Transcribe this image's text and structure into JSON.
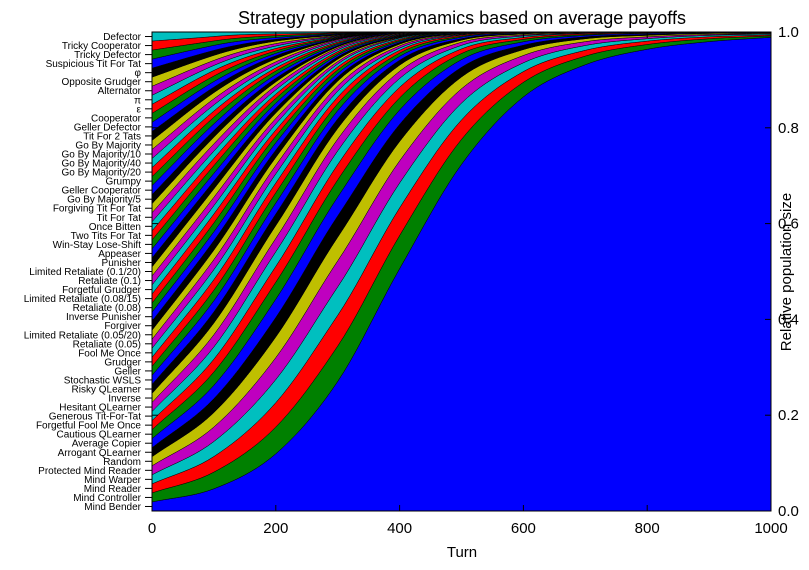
{
  "chart_data": {
    "type": "area",
    "title": "Strategy population dynamics based on average payoffs",
    "xlabel": "Turn",
    "ylabel": "Relative population size",
    "xlim": [
      0,
      1000
    ],
    "ylim": [
      0.0,
      1.0
    ],
    "x_ticks": [
      "0",
      "200",
      "400",
      "600",
      "800",
      "1000"
    ],
    "y_ticks": [
      "0.0",
      "0.2",
      "0.4",
      "0.6",
      "0.8",
      "1.0"
    ],
    "stack_order": "bottom-to-top",
    "colors": [
      "#0000ff",
      "#008000",
      "#ff0000",
      "#00bfbf",
      "#bf00bf",
      "#bfbf00",
      "#000000"
    ],
    "strategies": [
      "Mind Bender",
      "Mind Controller",
      "Mind Reader",
      "Mind Warper",
      "Protected Mind Reader",
      "Random",
      "Arrogant QLearner",
      "Average Copier",
      "Cautious QLearner",
      "Forgetful Fool Me Once",
      "Generous Tit-For-Tat",
      "Hesitant QLearner",
      "Inverse",
      "Risky QLearner",
      "Stochastic WSLS",
      "Geller",
      "Grudger",
      "Fool Me Once",
      "Retaliate (0.05)",
      "Limited Retaliate (0.05/20)",
      "Forgiver",
      "Inverse Punisher",
      "Retaliate (0.08)",
      "Limited Retaliate (0.08/15)",
      "Forgetful Grudger",
      "Retaliate (0.1)",
      "Limited Retaliate (0.1/20)",
      "Punisher",
      "Appeaser",
      "Win-Stay Lose-Shift",
      "Two Tits For Tat",
      "Once Bitten",
      "Tit For Tat",
      "Forgiving Tit For Tat",
      "Go By Majority/5",
      "Geller Cooperator",
      "Grumpy",
      "Go By Majority/20",
      "Go By Majority/40",
      "Go By Majority/10",
      "Go By Majority",
      "Tit For 2 Tats",
      "Geller Defector",
      "Cooperator",
      "ε",
      "π",
      "Alternator",
      "Opposite Grudger",
      "φ",
      "Suspicious Tit For Tat",
      "Tricky Defector",
      "Tricky Cooperator",
      "Defector"
    ],
    "x": [
      0,
      100,
      200,
      300,
      400,
      500,
      600,
      700,
      800,
      900,
      1000
    ],
    "series_note_values": "each row gives the relative population of one strategy at the turns in x; rows follow strategies order",
    "values": [
      [
        0.019,
        0.04,
        0.094,
        0.219,
        0.438,
        0.678,
        0.848,
        0.927,
        0.962,
        0.976,
        0.981
      ],
      [
        0.019,
        0.03,
        0.044,
        0.06,
        0.06,
        0.049,
        0.03,
        0.018,
        0.01,
        0.006,
        0.003
      ],
      [
        0.019,
        0.028,
        0.04,
        0.052,
        0.05,
        0.038,
        0.022,
        0.012,
        0.007,
        0.004,
        0.002
      ],
      [
        0.019,
        0.027,
        0.038,
        0.048,
        0.045,
        0.033,
        0.018,
        0.01,
        0.005,
        0.003,
        0.002
      ],
      [
        0.019,
        0.026,
        0.036,
        0.044,
        0.04,
        0.028,
        0.015,
        0.008,
        0.004,
        0.002,
        0.001
      ],
      [
        0.019,
        0.026,
        0.034,
        0.04,
        0.035,
        0.023,
        0.012,
        0.006,
        0.003,
        0.002,
        0.001
      ],
      [
        0.019,
        0.025,
        0.032,
        0.036,
        0.031,
        0.019,
        0.009,
        0.004,
        0.002,
        0.001,
        0.001
      ],
      [
        0.019,
        0.024,
        0.03,
        0.032,
        0.026,
        0.015,
        0.007,
        0.003,
        0.002,
        0.001,
        0.001
      ],
      [
        0.019,
        0.024,
        0.028,
        0.029,
        0.022,
        0.012,
        0.005,
        0.002,
        0.001,
        0.001,
        0.0
      ],
      [
        0.019,
        0.023,
        0.026,
        0.026,
        0.019,
        0.009,
        0.004,
        0.002,
        0.001,
        0.0,
        0.0
      ],
      [
        0.019,
        0.022,
        0.024,
        0.023,
        0.016,
        0.007,
        0.003,
        0.001,
        0.001,
        0.0,
        0.0
      ],
      [
        0.019,
        0.022,
        0.022,
        0.02,
        0.013,
        0.006,
        0.002,
        0.001,
        0.0,
        0.0,
        0.0
      ],
      [
        0.019,
        0.021,
        0.021,
        0.018,
        0.011,
        0.004,
        0.002,
        0.001,
        0.0,
        0.0,
        0.0
      ],
      [
        0.019,
        0.02,
        0.019,
        0.016,
        0.009,
        0.003,
        0.001,
        0.0,
        0.0,
        0.0,
        0.0
      ],
      [
        0.019,
        0.02,
        0.018,
        0.014,
        0.007,
        0.003,
        0.001,
        0.0,
        0.0,
        0.0,
        0.0
      ],
      [
        0.019,
        0.019,
        0.017,
        0.012,
        0.006,
        0.002,
        0.001,
        0.0,
        0.0,
        0.0,
        0.0
      ],
      [
        0.019,
        0.019,
        0.016,
        0.011,
        0.005,
        0.002,
        0.001,
        0.0,
        0.0,
        0.0,
        0.0
      ],
      [
        0.019,
        0.018,
        0.015,
        0.01,
        0.004,
        0.001,
        0.0,
        0.0,
        0.0,
        0.0,
        0.0
      ],
      [
        0.019,
        0.018,
        0.014,
        0.009,
        0.004,
        0.001,
        0.0,
        0.0,
        0.0,
        0.0,
        0.0
      ],
      [
        0.019,
        0.017,
        0.013,
        0.008,
        0.003,
        0.001,
        0.0,
        0.0,
        0.0,
        0.0,
        0.0
      ],
      [
        0.019,
        0.017,
        0.012,
        0.007,
        0.003,
        0.001,
        0.0,
        0.0,
        0.0,
        0.0,
        0.0
      ],
      [
        0.019,
        0.016,
        0.012,
        0.006,
        0.002,
        0.001,
        0.0,
        0.0,
        0.0,
        0.0,
        0.0
      ],
      [
        0.019,
        0.016,
        0.011,
        0.006,
        0.002,
        0.001,
        0.0,
        0.0,
        0.0,
        0.0,
        0.0
      ],
      [
        0.019,
        0.016,
        0.01,
        0.005,
        0.002,
        0.0,
        0.0,
        0.0,
        0.0,
        0.0,
        0.0
      ],
      [
        0.019,
        0.015,
        0.01,
        0.005,
        0.002,
        0.0,
        0.0,
        0.0,
        0.0,
        0.0,
        0.0
      ],
      [
        0.019,
        0.015,
        0.009,
        0.004,
        0.001,
        0.0,
        0.0,
        0.0,
        0.0,
        0.0,
        0.0
      ],
      [
        0.019,
        0.015,
        0.009,
        0.004,
        0.001,
        0.0,
        0.0,
        0.0,
        0.0,
        0.0,
        0.0
      ],
      [
        0.019,
        0.014,
        0.008,
        0.004,
        0.001,
        0.0,
        0.0,
        0.0,
        0.0,
        0.0,
        0.0
      ],
      [
        0.019,
        0.014,
        0.008,
        0.003,
        0.001,
        0.0,
        0.0,
        0.0,
        0.0,
        0.0,
        0.0
      ],
      [
        0.019,
        0.014,
        0.008,
        0.003,
        0.001,
        0.0,
        0.0,
        0.0,
        0.0,
        0.0,
        0.0
      ],
      [
        0.019,
        0.013,
        0.007,
        0.003,
        0.001,
        0.0,
        0.0,
        0.0,
        0.0,
        0.0,
        0.0
      ],
      [
        0.019,
        0.013,
        0.007,
        0.003,
        0.001,
        0.0,
        0.0,
        0.0,
        0.0,
        0.0,
        0.0
      ],
      [
        0.019,
        0.013,
        0.007,
        0.003,
        0.001,
        0.0,
        0.0,
        0.0,
        0.0,
        0.0,
        0.0
      ],
      [
        0.019,
        0.012,
        0.006,
        0.002,
        0.001,
        0.0,
        0.0,
        0.0,
        0.0,
        0.0,
        0.0
      ],
      [
        0.019,
        0.012,
        0.006,
        0.002,
        0.001,
        0.0,
        0.0,
        0.0,
        0.0,
        0.0,
        0.0
      ],
      [
        0.019,
        0.012,
        0.006,
        0.002,
        0.001,
        0.0,
        0.0,
        0.0,
        0.0,
        0.0,
        0.0
      ],
      [
        0.019,
        0.012,
        0.006,
        0.002,
        0.0,
        0.0,
        0.0,
        0.0,
        0.0,
        0.0,
        0.0
      ],
      [
        0.019,
        0.011,
        0.005,
        0.002,
        0.0,
        0.0,
        0.0,
        0.0,
        0.0,
        0.0,
        0.0
      ],
      [
        0.019,
        0.011,
        0.005,
        0.002,
        0.0,
        0.0,
        0.0,
        0.0,
        0.0,
        0.0,
        0.0
      ],
      [
        0.019,
        0.011,
        0.005,
        0.002,
        0.0,
        0.0,
        0.0,
        0.0,
        0.0,
        0.0,
        0.0
      ],
      [
        0.019,
        0.011,
        0.005,
        0.001,
        0.0,
        0.0,
        0.0,
        0.0,
        0.0,
        0.0,
        0.0
      ],
      [
        0.019,
        0.01,
        0.005,
        0.001,
        0.0,
        0.0,
        0.0,
        0.0,
        0.0,
        0.0,
        0.0
      ],
      [
        0.019,
        0.01,
        0.004,
        0.001,
        0.0,
        0.0,
        0.0,
        0.0,
        0.0,
        0.0,
        0.0
      ],
      [
        0.019,
        0.01,
        0.004,
        0.001,
        0.0,
        0.0,
        0.0,
        0.0,
        0.0,
        0.0,
        0.0
      ],
      [
        0.019,
        0.01,
        0.004,
        0.001,
        0.0,
        0.0,
        0.0,
        0.0,
        0.0,
        0.0,
        0.0
      ],
      [
        0.019,
        0.009,
        0.004,
        0.001,
        0.0,
        0.0,
        0.0,
        0.0,
        0.0,
        0.0,
        0.0
      ],
      [
        0.019,
        0.009,
        0.004,
        0.001,
        0.0,
        0.0,
        0.0,
        0.0,
        0.0,
        0.0,
        0.0
      ],
      [
        0.019,
        0.009,
        0.004,
        0.001,
        0.0,
        0.0,
        0.0,
        0.0,
        0.0,
        0.0,
        0.0
      ],
      [
        0.019,
        0.009,
        0.003,
        0.001,
        0.0,
        0.0,
        0.0,
        0.0,
        0.0,
        0.0,
        0.0
      ],
      [
        0.019,
        0.009,
        0.003,
        0.001,
        0.0,
        0.0,
        0.0,
        0.0,
        0.0,
        0.0,
        0.0
      ],
      [
        0.019,
        0.008,
        0.003,
        0.001,
        0.0,
        0.0,
        0.0,
        0.0,
        0.0,
        0.0,
        0.0
      ],
      [
        0.019,
        0.008,
        0.003,
        0.001,
        0.0,
        0.0,
        0.0,
        0.0,
        0.0,
        0.0,
        0.0
      ],
      [
        0.019,
        0.008,
        0.003,
        0.001,
        0.0,
        0.0,
        0.0,
        0.0,
        0.0,
        0.0,
        0.0
      ]
    ]
  }
}
